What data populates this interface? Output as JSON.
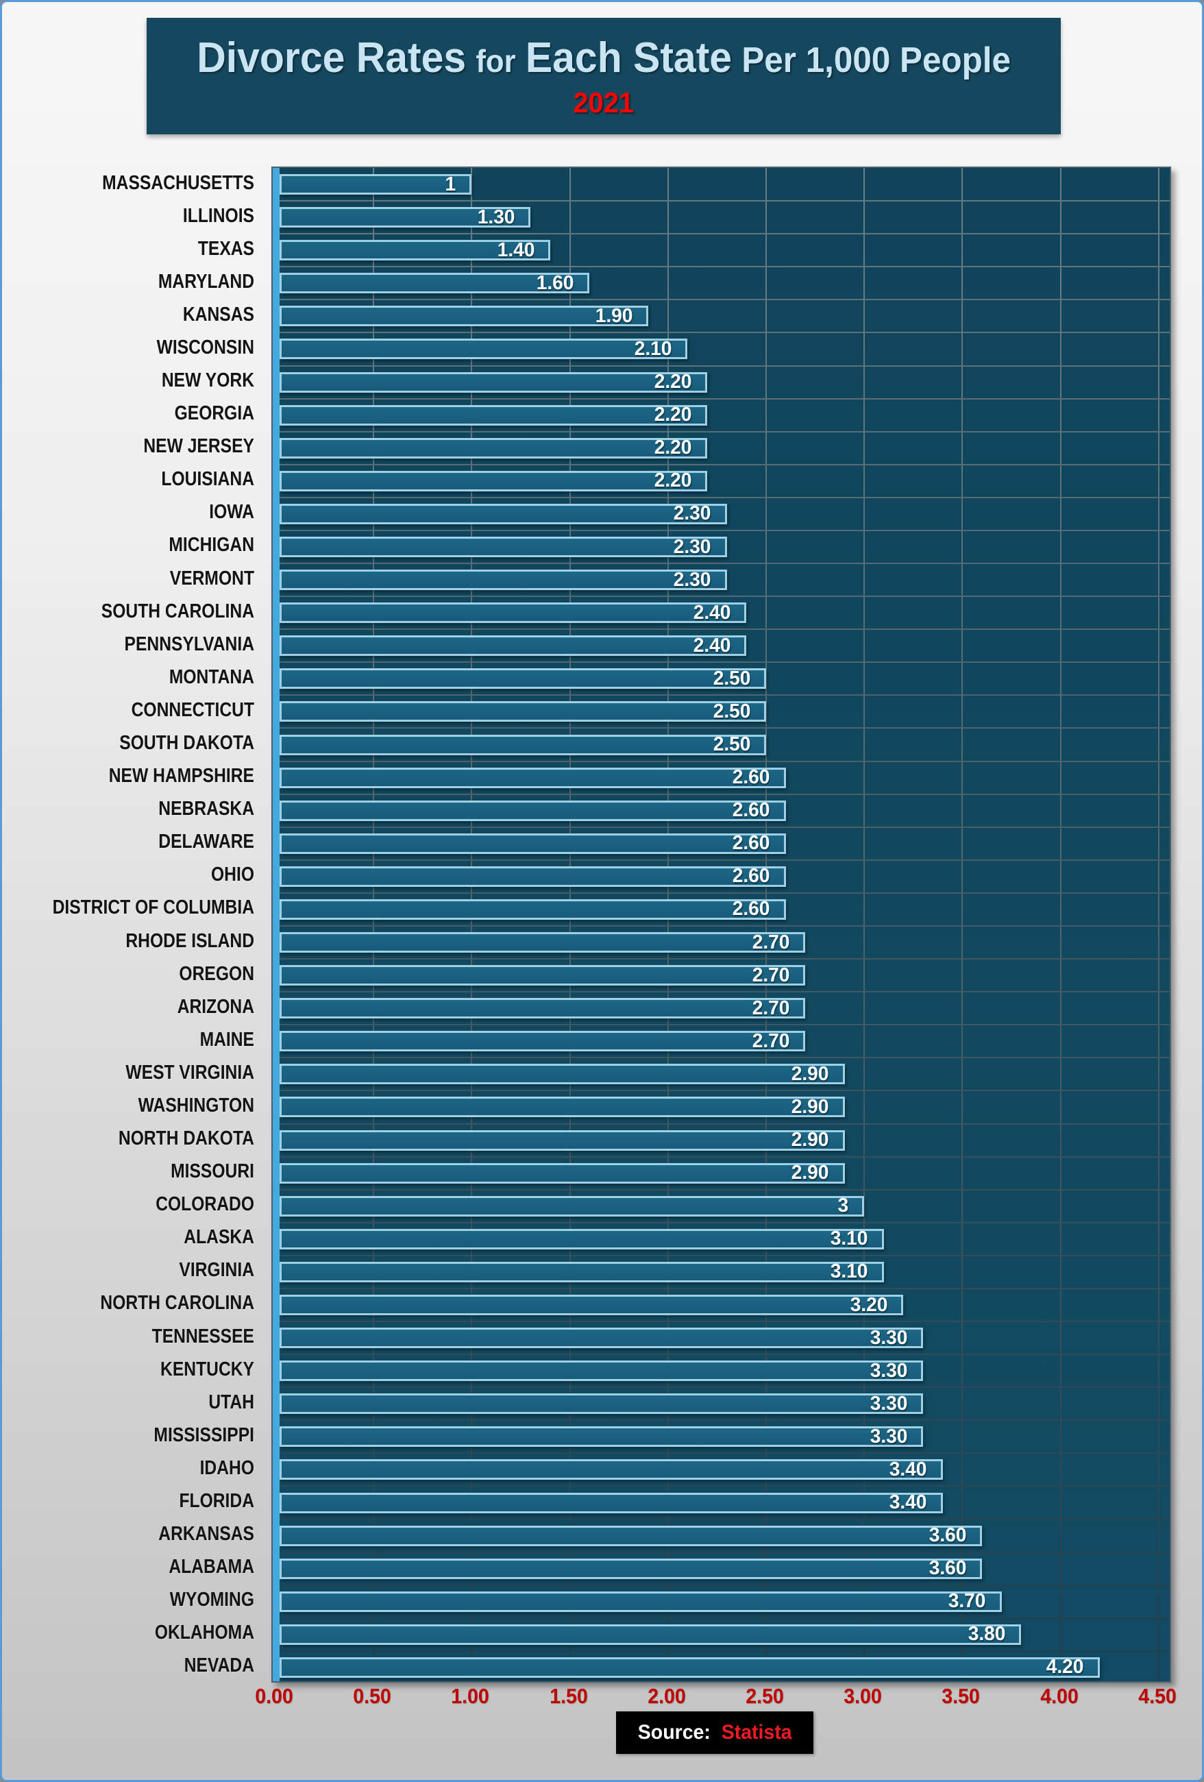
{
  "title": {
    "part1": "Divorce Rates",
    "part2": "for",
    "part3": "Each State",
    "part4": "Per 1,000 People",
    "year": "2021"
  },
  "source": {
    "prefix": "Source:",
    "name": "Statista"
  },
  "axis": {
    "tick_labels": [
      "0.00",
      "0.50",
      "1.00",
      "1.50",
      "2.00",
      "2.50",
      "3.00",
      "3.50",
      "4.00",
      "4.50"
    ],
    "tick_values": [
      0,
      0.5,
      1,
      1.5,
      2,
      2.5,
      3,
      3.5,
      4,
      4.5
    ]
  },
  "colors": {
    "frame_border": "#5B9BD5",
    "title_bg": "#15485F",
    "title_text": "#C9E5F3",
    "year_red": "#FF0000",
    "plot_bg": "#12495F",
    "bar_fill": "#1A607F",
    "bar_border": "#9FD0E5",
    "axis_strip": "#45A9DE",
    "gridline_top": "#66787F",
    "gridline_bottom": "#243E4A",
    "tick_red": "#C00000",
    "statista_red": "#ED1C24",
    "value_text": "#FFFFFF",
    "state_label_text": "#141414"
  },
  "chart_data": {
    "type": "bar",
    "orientation": "horizontal",
    "title": "Divorce Rates for Each State Per 1,000 People",
    "subtitle": "2021",
    "xlim": [
      0,
      4.5
    ],
    "x_ticks": [
      0,
      0.5,
      1.0,
      1.5,
      2.0,
      2.5,
      3.0,
      3.5,
      4.0,
      4.5
    ],
    "grid": true,
    "legend": false,
    "source": "Statista",
    "categories": [
      "MASSACHUSETTS",
      "ILLINOIS",
      "TEXAS",
      "MARYLAND",
      "KANSAS",
      "WISCONSIN",
      "NEW YORK",
      "GEORGIA",
      "NEW JERSEY",
      "LOUISIANA",
      "IOWA",
      "MICHIGAN",
      "VERMONT",
      "SOUTH CAROLINA",
      "PENNSYLVANIA",
      "MONTANA",
      "CONNECTICUT",
      "SOUTH DAKOTA",
      "NEW HAMPSHIRE",
      "NEBRASKA",
      "DELAWARE",
      "OHIO",
      "DISTRICT OF COLUMBIA",
      "RHODE ISLAND",
      "OREGON",
      "ARIZONA",
      "MAINE",
      "WEST VIRGINIA",
      "WASHINGTON",
      "NORTH DAKOTA",
      "MISSOURI",
      "COLORADO",
      "ALASKA",
      "VIRGINIA",
      "NORTH CAROLINA",
      "TENNESSEE",
      "KENTUCKY",
      "UTAH",
      "MISSISSIPPI",
      "IDAHO",
      "FLORIDA",
      "ARKANSAS",
      "ALABAMA",
      "WYOMING",
      "OKLAHOMA",
      "NEVADA"
    ],
    "values": [
      1.0,
      1.3,
      1.4,
      1.6,
      1.9,
      2.1,
      2.2,
      2.2,
      2.2,
      2.2,
      2.3,
      2.3,
      2.3,
      2.4,
      2.4,
      2.5,
      2.5,
      2.5,
      2.6,
      2.6,
      2.6,
      2.6,
      2.6,
      2.7,
      2.7,
      2.7,
      2.7,
      2.9,
      2.9,
      2.9,
      2.9,
      3.0,
      3.1,
      3.1,
      3.2,
      3.3,
      3.3,
      3.3,
      3.3,
      3.4,
      3.4,
      3.6,
      3.6,
      3.7,
      3.8,
      4.2
    ],
    "value_labels": [
      "1",
      "1.30",
      "1.40",
      "1.60",
      "1.90",
      "2.10",
      "2.20",
      "2.20",
      "2.20",
      "2.20",
      "2.30",
      "2.30",
      "2.30",
      "2.40",
      "2.40",
      "2.50",
      "2.50",
      "2.50",
      "2.60",
      "2.60",
      "2.60",
      "2.60",
      "2.60",
      "2.70",
      "2.70",
      "2.70",
      "2.70",
      "2.90",
      "2.90",
      "2.90",
      "2.90",
      "3",
      "3.10",
      "3.10",
      "3.20",
      "3.30",
      "3.30",
      "3.30",
      "3.30",
      "3.40",
      "3.40",
      "3.60",
      "3.60",
      "3.70",
      "3.80",
      "4.20"
    ]
  }
}
